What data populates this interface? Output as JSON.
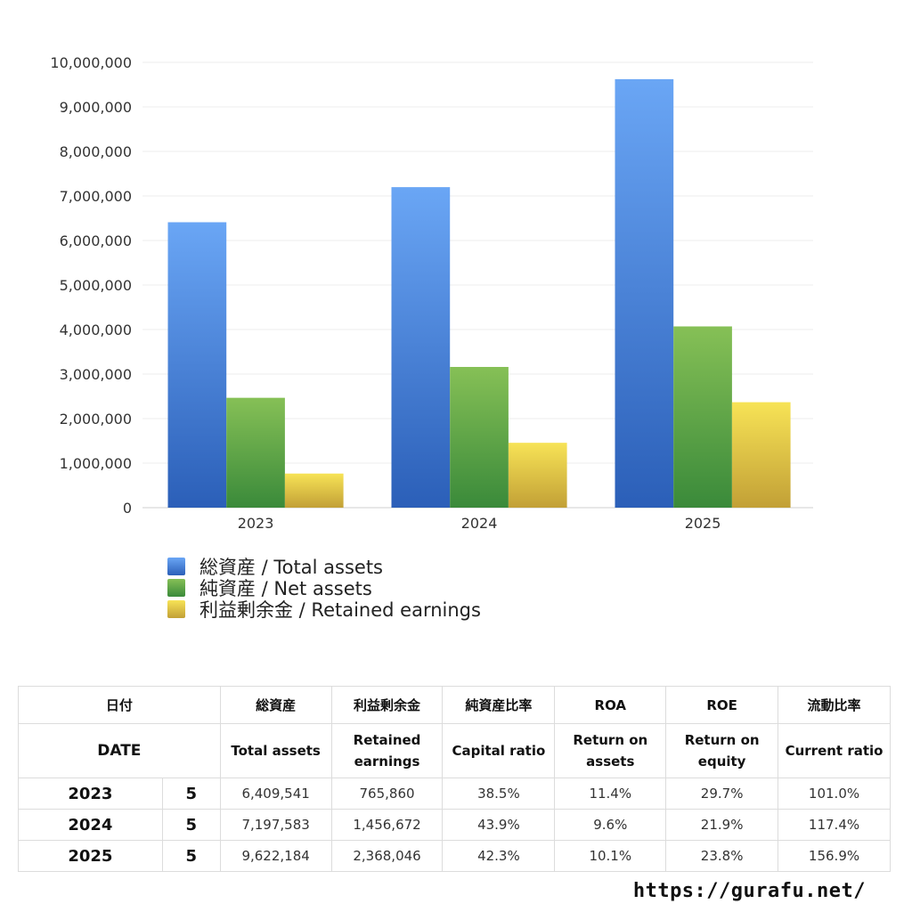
{
  "chart_data": {
    "type": "bar",
    "categories": [
      "2023",
      "2024",
      "2025"
    ],
    "series": [
      {
        "name": "総資産 / Total assets",
        "values": [
          6409541,
          7197583,
          9622184
        ]
      },
      {
        "name": "純資産 / Net assets",
        "values": [
          2467000,
          3160000,
          4070000
        ]
      },
      {
        "name": "利益剰余金 / Retained earnings",
        "values": [
          765860,
          1456672,
          2368046
        ]
      }
    ],
    "ylim": [
      0,
      10000000
    ],
    "yticks": [
      "0",
      "1,000,000",
      "2,000,000",
      "3,000,000",
      "4,000,000",
      "5,000,000",
      "6,000,000",
      "7,000,000",
      "8,000,000",
      "9,000,000",
      "10,000,000"
    ],
    "grid": true,
    "legend_position": "bottom-left",
    "colors": {
      "total_assets": [
        "#6aa6f5",
        "#2b5fb8"
      ],
      "net_assets": [
        "#86c056",
        "#3a8a3a"
      ],
      "retained_earnings": [
        "#f7e356",
        "#c2a036"
      ]
    }
  },
  "table": {
    "header_ja": [
      "日付",
      "総資産",
      "利益剰余金",
      "純資産比率",
      "ROA",
      "ROE",
      "流動比率"
    ],
    "header_en": [
      "DATE",
      "Total assets",
      "Retained earnings",
      "Capital ratio",
      "Return on assets",
      "Return on equity",
      "Current ratio"
    ],
    "rows": [
      {
        "year": "2023",
        "month": "5",
        "total_assets": "6,409,541",
        "retained_earnings": "765,860",
        "capital_ratio": "38.5%",
        "roa": "11.4%",
        "roe": "29.7%",
        "current_ratio": "101.0%"
      },
      {
        "year": "2024",
        "month": "5",
        "total_assets": "7,197,583",
        "retained_earnings": "1,456,672",
        "capital_ratio": "43.9%",
        "roa": "9.6%",
        "roe": "21.9%",
        "current_ratio": "117.4%"
      },
      {
        "year": "2025",
        "month": "5",
        "total_assets": "9,622,184",
        "retained_earnings": "2,368,046",
        "capital_ratio": "42.3%",
        "roa": "10.1%",
        "roe": "23.8%",
        "current_ratio": "156.9%"
      }
    ]
  },
  "site_url": "https://gurafu.net/"
}
